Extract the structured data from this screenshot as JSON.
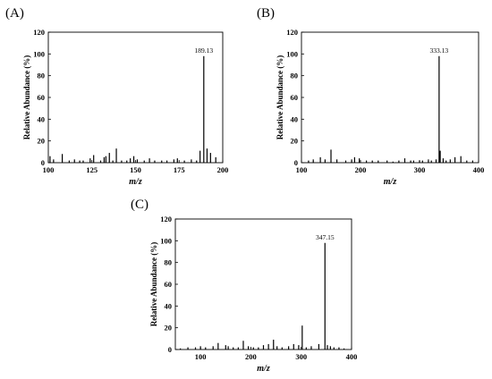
{
  "chart_data": [
    {
      "type": "bar",
      "panel_label": "(A)",
      "xlabel": "m/z",
      "ylabel": "Relative Abundance (%)",
      "xlim": [
        100,
        200
      ],
      "ylim": [
        0,
        120
      ],
      "xticks": [
        100,
        125,
        150,
        175,
        200
      ],
      "yticks": [
        0,
        20,
        40,
        60,
        80,
        100,
        120
      ],
      "annotation": "189.13",
      "annotated_x": 189.13,
      "x": [
        101,
        103,
        108,
        112,
        115,
        118,
        120,
        124,
        126,
        130,
        132,
        133,
        135,
        137,
        139,
        142,
        145,
        147,
        149,
        151,
        155,
        158,
        161,
        165,
        168,
        172,
        174,
        178,
        182,
        185,
        187,
        189.13,
        191,
        193,
        196
      ],
      "values": [
        6,
        3,
        8,
        2,
        3,
        2,
        2,
        4,
        7,
        2,
        5,
        6,
        9,
        2,
        13,
        2,
        2,
        4,
        6,
        3,
        2,
        4,
        2,
        2,
        2,
        3,
        4,
        2,
        3,
        2,
        11,
        98,
        13,
        9,
        5
      ]
    },
    {
      "type": "bar",
      "panel_label": "(B)",
      "xlabel": "m/z",
      "ylabel": "Relative Abundance (%)",
      "xlim": [
        100,
        400
      ],
      "ylim": [
        0,
        120
      ],
      "xticks": [
        100,
        200,
        300,
        400
      ],
      "yticks": [
        0,
        20,
        40,
        60,
        80,
        100,
        120
      ],
      "annotation": "333.13",
      "annotated_x": 333.13,
      "x": [
        112,
        120,
        132,
        140,
        150,
        160,
        175,
        185,
        190,
        198,
        210,
        220,
        230,
        245,
        255,
        265,
        275,
        285,
        290,
        300,
        305,
        315,
        320,
        328,
        333.13,
        335,
        340,
        345,
        352,
        360,
        370,
        380,
        390
      ],
      "values": [
        2,
        3,
        5,
        3,
        12,
        3,
        2,
        3,
        5,
        4,
        2,
        2,
        2,
        2,
        1,
        2,
        4,
        2,
        2,
        2,
        2,
        3,
        2,
        3,
        98,
        11,
        4,
        2,
        3,
        5,
        6,
        2,
        2
      ]
    },
    {
      "type": "bar",
      "panel_label": "(C)",
      "xlabel": "m/z",
      "ylabel": "Relative Abundance (%)",
      "xlim": [
        50,
        400
      ],
      "ylim": [
        0,
        120
      ],
      "xticks": [
        100,
        200,
        300,
        400
      ],
      "yticks": [
        0,
        20,
        40,
        60,
        80,
        100,
        120
      ],
      "annotation": "347.15",
      "annotated_x": 347.15,
      "x": [
        60,
        75,
        90,
        100,
        110,
        125,
        135,
        150,
        155,
        165,
        175,
        185,
        195,
        205,
        215,
        225,
        235,
        245,
        252,
        262,
        275,
        285,
        295,
        302,
        310,
        320,
        335,
        347.15,
        352,
        358,
        365,
        375,
        385
      ],
      "values": [
        1,
        2,
        2,
        3,
        2,
        3,
        6,
        4,
        3,
        2,
        2,
        8,
        3,
        2,
        2,
        4,
        5,
        9,
        3,
        2,
        3,
        5,
        4,
        22,
        2,
        3,
        5,
        98,
        4,
        3,
        2,
        2,
        1
      ]
    }
  ]
}
